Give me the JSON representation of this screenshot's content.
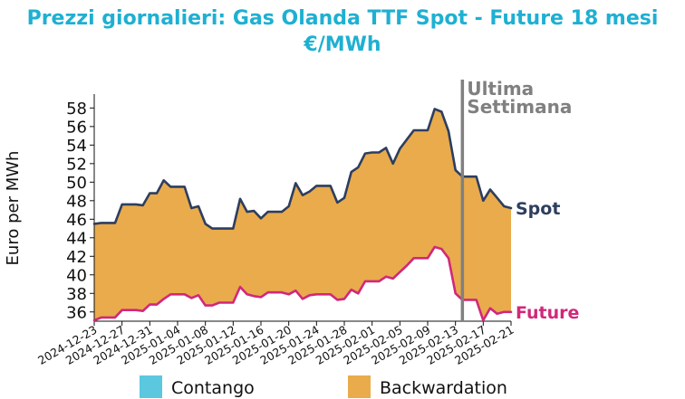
{
  "chart_data": {
    "type": "area",
    "title": "Prezzi giornalieri: Gas Olanda TTF Spot - Future 18 mesi",
    "subtitle": "€/MWh",
    "ylabel": "Euro per MWh",
    "xlabel": "",
    "ylim": [
      35.0,
      59.5
    ],
    "yticks": [
      36,
      38,
      40,
      42,
      44,
      46,
      48,
      50,
      52,
      54,
      56,
      58
    ],
    "xlim": [
      "2024-12-23",
      "2025-02-21"
    ],
    "xticks": [
      "2024-12-23",
      "2024-12-27",
      "2024-12-31",
      "2025-01-04",
      "2025-01-08",
      "2025-01-12",
      "2025-01-16",
      "2025-01-20",
      "2025-01-24",
      "2025-01-28",
      "2025-02-01",
      "2025-02-05",
      "2025-02-09",
      "2025-02-13",
      "2025-02-17",
      "2025-02-21"
    ],
    "grid": false,
    "legend_position": "bottom",
    "series": [
      {
        "name": "Spot",
        "color": "#2d3e5f",
        "points": [
          [
            "2024-12-23",
            45.5
          ],
          [
            "2024-12-24",
            45.6
          ],
          [
            "2024-12-25",
            45.6
          ],
          [
            "2024-12-26",
            45.6
          ],
          [
            "2024-12-27",
            47.6
          ],
          [
            "2024-12-28",
            47.6
          ],
          [
            "2024-12-29",
            47.6
          ],
          [
            "2024-12-30",
            47.5
          ],
          [
            "2024-12-31",
            48.8
          ],
          [
            "2025-01-01",
            48.8
          ],
          [
            "2025-01-02",
            50.2
          ],
          [
            "2025-01-03",
            49.5
          ],
          [
            "2025-01-04",
            49.5
          ],
          [
            "2025-01-05",
            49.5
          ],
          [
            "2025-01-06",
            47.2
          ],
          [
            "2025-01-07",
            47.4
          ],
          [
            "2025-01-08",
            45.5
          ],
          [
            "2025-01-09",
            45.0
          ],
          [
            "2025-01-10",
            45.0
          ],
          [
            "2025-01-11",
            45.0
          ],
          [
            "2025-01-12",
            45.0
          ],
          [
            "2025-01-13",
            48.2
          ],
          [
            "2025-01-14",
            46.8
          ],
          [
            "2025-01-15",
            46.9
          ],
          [
            "2025-01-16",
            46.1
          ],
          [
            "2025-01-17",
            46.8
          ],
          [
            "2025-01-18",
            46.8
          ],
          [
            "2025-01-19",
            46.8
          ],
          [
            "2025-01-20",
            47.4
          ],
          [
            "2025-01-21",
            49.9
          ],
          [
            "2025-01-22",
            48.6
          ],
          [
            "2025-01-23",
            49.0
          ],
          [
            "2025-01-24",
            49.6
          ],
          [
            "2025-01-25",
            49.6
          ],
          [
            "2025-01-26",
            49.6
          ],
          [
            "2025-01-27",
            47.8
          ],
          [
            "2025-01-28",
            48.3
          ],
          [
            "2025-01-29",
            51.1
          ],
          [
            "2025-01-30",
            51.6
          ],
          [
            "2025-01-31",
            53.1
          ],
          [
            "2025-02-01",
            53.2
          ],
          [
            "2025-02-02",
            53.2
          ],
          [
            "2025-02-03",
            53.7
          ],
          [
            "2025-02-04",
            52.0
          ],
          [
            "2025-02-05",
            53.6
          ],
          [
            "2025-02-06",
            54.6
          ],
          [
            "2025-02-07",
            55.6
          ],
          [
            "2025-02-08",
            55.6
          ],
          [
            "2025-02-09",
            55.6
          ],
          [
            "2025-02-10",
            57.9
          ],
          [
            "2025-02-11",
            57.6
          ],
          [
            "2025-02-12",
            55.5
          ],
          [
            "2025-02-13",
            51.3
          ],
          [
            "2025-02-14",
            50.6
          ],
          [
            "2025-02-15",
            50.6
          ],
          [
            "2025-02-16",
            50.6
          ],
          [
            "2025-02-17",
            48.0
          ],
          [
            "2025-02-18",
            49.2
          ],
          [
            "2025-02-19",
            48.3
          ],
          [
            "2025-02-20",
            47.4
          ],
          [
            "2025-02-21",
            47.2
          ]
        ]
      },
      {
        "name": "Future",
        "color": "#d1287a",
        "points": [
          [
            "2024-12-23",
            35.1
          ],
          [
            "2024-12-24",
            35.4
          ],
          [
            "2024-12-25",
            35.4
          ],
          [
            "2024-12-26",
            35.4
          ],
          [
            "2024-12-27",
            36.2
          ],
          [
            "2024-12-28",
            36.2
          ],
          [
            "2024-12-29",
            36.2
          ],
          [
            "2024-12-30",
            36.1
          ],
          [
            "2024-12-31",
            36.8
          ],
          [
            "2025-01-01",
            36.8
          ],
          [
            "2025-01-02",
            37.4
          ],
          [
            "2025-01-03",
            37.9
          ],
          [
            "2025-01-04",
            37.9
          ],
          [
            "2025-01-05",
            37.9
          ],
          [
            "2025-01-06",
            37.5
          ],
          [
            "2025-01-07",
            37.8
          ],
          [
            "2025-01-08",
            36.7
          ],
          [
            "2025-01-09",
            36.7
          ],
          [
            "2025-01-10",
            37.0
          ],
          [
            "2025-01-11",
            37.0
          ],
          [
            "2025-01-12",
            37.0
          ],
          [
            "2025-01-13",
            38.7
          ],
          [
            "2025-01-14",
            37.9
          ],
          [
            "2025-01-15",
            37.7
          ],
          [
            "2025-01-16",
            37.6
          ],
          [
            "2025-01-17",
            38.1
          ],
          [
            "2025-01-18",
            38.1
          ],
          [
            "2025-01-19",
            38.1
          ],
          [
            "2025-01-20",
            37.9
          ],
          [
            "2025-01-21",
            38.3
          ],
          [
            "2025-01-22",
            37.4
          ],
          [
            "2025-01-23",
            37.8
          ],
          [
            "2025-01-24",
            37.9
          ],
          [
            "2025-01-25",
            37.9
          ],
          [
            "2025-01-26",
            37.9
          ],
          [
            "2025-01-27",
            37.3
          ],
          [
            "2025-01-28",
            37.4
          ],
          [
            "2025-01-29",
            38.4
          ],
          [
            "2025-01-30",
            38.0
          ],
          [
            "2025-01-31",
            39.3
          ],
          [
            "2025-02-01",
            39.3
          ],
          [
            "2025-02-02",
            39.3
          ],
          [
            "2025-02-03",
            39.8
          ],
          [
            "2025-02-04",
            39.6
          ],
          [
            "2025-02-05",
            40.3
          ],
          [
            "2025-02-06",
            41.0
          ],
          [
            "2025-02-07",
            41.8
          ],
          [
            "2025-02-08",
            41.8
          ],
          [
            "2025-02-09",
            41.8
          ],
          [
            "2025-02-10",
            43.0
          ],
          [
            "2025-02-11",
            42.8
          ],
          [
            "2025-02-12",
            41.8
          ],
          [
            "2025-02-13",
            38.0
          ],
          [
            "2025-02-14",
            37.3
          ],
          [
            "2025-02-15",
            37.3
          ],
          [
            "2025-02-16",
            37.3
          ],
          [
            "2025-02-17",
            35.1
          ],
          [
            "2025-02-18",
            36.4
          ],
          [
            "2025-02-19",
            35.8
          ],
          [
            "2025-02-20",
            36.0
          ],
          [
            "2025-02-21",
            36.0
          ]
        ]
      }
    ],
    "fill_regions": [
      {
        "name": "Contango",
        "color": "#5bc8e0"
      },
      {
        "name": "Backwardation",
        "color": "#e9ab4b"
      }
    ],
    "annotations": [
      {
        "text_lines": [
          "Ultima",
          "Settimana"
        ],
        "x": "2025-02-14",
        "line_color": "#808080"
      }
    ]
  }
}
